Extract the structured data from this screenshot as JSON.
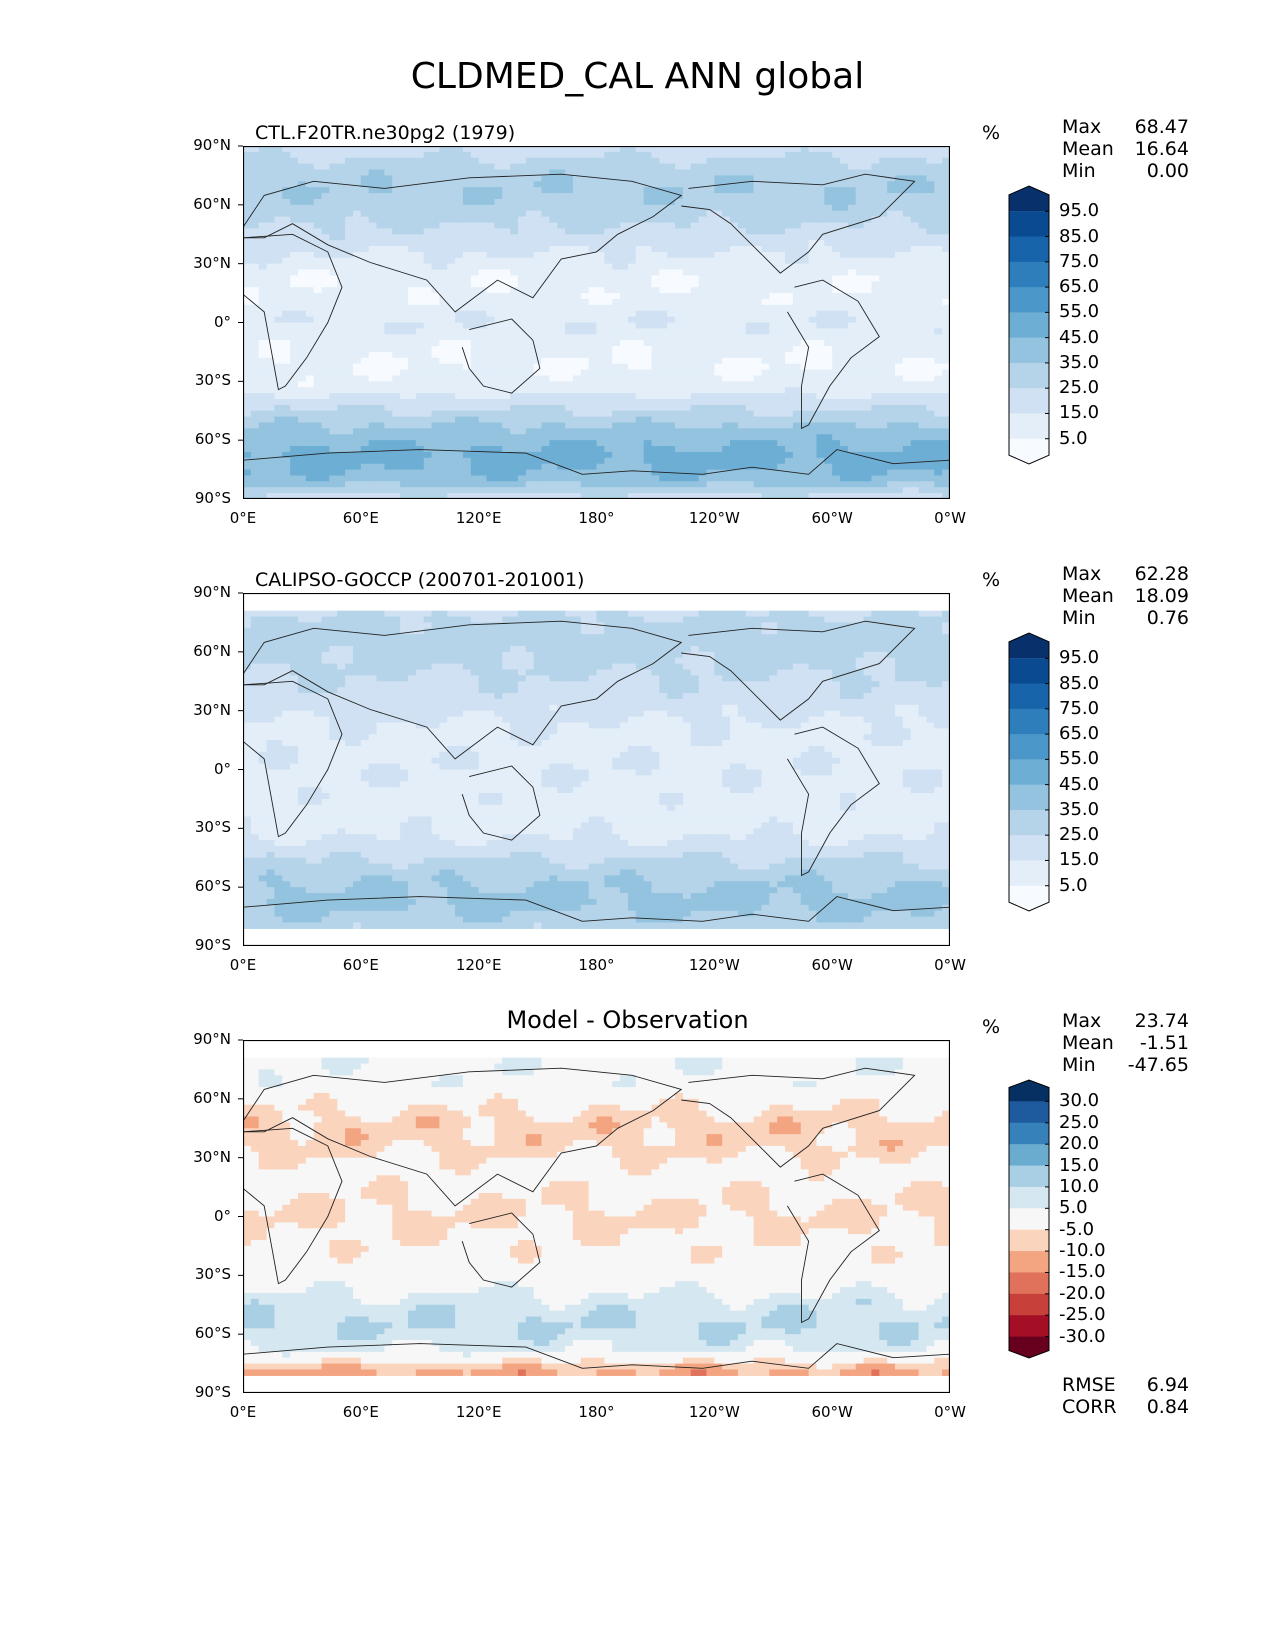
{
  "title": "CLDMED_CAL ANN global",
  "chart_data": [
    {
      "type": "heatmap",
      "title": "CTL.F20TR.ne30pg2 (1979)",
      "units": "%",
      "stats": {
        "max_label": "Max",
        "max": "68.47",
        "mean_label": "Mean",
        "mean": "16.64",
        "min_label": "Min",
        "min": "0.00"
      },
      "lat_ticks": [
        "90°N",
        "60°N",
        "30°N",
        "0°",
        "30°S",
        "60°S",
        "90°S"
      ],
      "lon_ticks": [
        "0°E",
        "60°E",
        "120°E",
        "180°",
        "120°W",
        "60°W",
        "0°W"
      ],
      "colorbar": {
        "labels": [
          "95.0",
          "85.0",
          "75.0",
          "65.0",
          "55.0",
          "45.0",
          "35.0",
          "25.0",
          "15.0",
          "5.0"
        ],
        "colors": [
          "#f7fbff",
          "#e3eef9",
          "#cfe1f2",
          "#b5d4e9",
          "#93c3df",
          "#6daed5",
          "#4b97c9",
          "#2f7ebc",
          "#1864aa",
          "#0a4a90",
          "#08306b"
        ]
      },
      "zonal_profile_pct": [
        20,
        30,
        34,
        30,
        22,
        14,
        6,
        8,
        14,
        8,
        5,
        10,
        26,
        40,
        48,
        44,
        20
      ]
    },
    {
      "type": "heatmap",
      "title": "CALIPSO-GOCCP (200701-201001)",
      "units": "%",
      "stats": {
        "max_label": "Max",
        "max": "62.28",
        "mean_label": "Mean",
        "mean": "18.09",
        "min_label": "Min",
        "min": "0.76"
      },
      "lat_ticks": [
        "90°N",
        "60°N",
        "30°N",
        "0°",
        "30°S",
        "60°S",
        "90°S"
      ],
      "lon_ticks": [
        "0°E",
        "60°E",
        "120°E",
        "180°",
        "120°W",
        "60°W",
        "0°W"
      ],
      "colorbar": {
        "labels": [
          "95.0",
          "85.0",
          "75.0",
          "65.0",
          "55.0",
          "45.0",
          "35.0",
          "25.0",
          "15.0",
          "5.0"
        ],
        "colors": [
          "#f7fbff",
          "#e3eef9",
          "#cfe1f2",
          "#b5d4e9",
          "#93c3df",
          "#6daed5",
          "#4b97c9",
          "#2f7ebc",
          "#1864aa",
          "#0a4a90",
          "#08306b"
        ]
      },
      "zonal_profile_pct": [
        0,
        26,
        30,
        28,
        24,
        20,
        14,
        12,
        14,
        12,
        10,
        14,
        24,
        34,
        38,
        32,
        0
      ]
    },
    {
      "type": "heatmap",
      "title": "Model - Observation",
      "units": "%",
      "stats": {
        "max_label": "Max",
        "max": "23.74",
        "mean_label": "Mean",
        "mean": "-1.51",
        "min_label": "Min",
        "min": "-47.65"
      },
      "error": {
        "rmse_label": "RMSE",
        "rmse": "6.94",
        "corr_label": "CORR",
        "corr": "0.84"
      },
      "lat_ticks": [
        "90°N",
        "60°N",
        "30°N",
        "0°",
        "30°S",
        "60°S",
        "90°S"
      ],
      "lon_ticks": [
        "0°E",
        "60°E",
        "120°E",
        "180°",
        "120°W",
        "60°W",
        "0°W"
      ],
      "colorbar": {
        "labels": [
          "30.0",
          "25.0",
          "20.0",
          "15.0",
          "10.0",
          "5.0",
          "-5.0",
          "-10.0",
          "-15.0",
          "-20.0",
          "-25.0",
          "-30.0"
        ],
        "colors": [
          "#67001f",
          "#a50f26",
          "#c7403a",
          "#e0725c",
          "#f3a481",
          "#fbd4be",
          "#f7f7f7",
          "#d5e7f1",
          "#a8cfe4",
          "#6aacd0",
          "#3781bb",
          "#1d5b9e",
          "#053061"
        ]
      },
      "zonal_profile_pct": [
        0,
        4,
        2,
        -4,
        -8,
        -6,
        -2,
        -4,
        -6,
        -4,
        -2,
        2,
        8,
        10,
        6,
        -12,
        0
      ]
    }
  ]
}
